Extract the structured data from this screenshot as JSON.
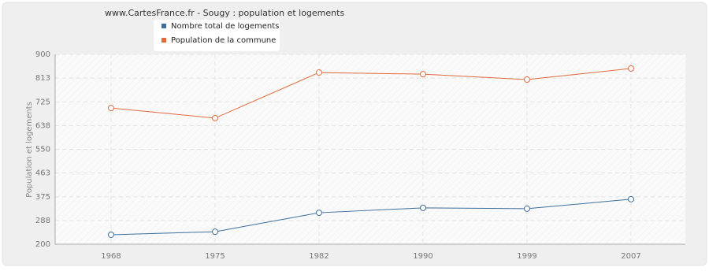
{
  "chart_data": {
    "type": "line",
    "title": "www.CartesFrance.fr - Sougy : population et logements",
    "y_label": "Population et logements",
    "categories": [
      "1968",
      "1975",
      "1982",
      "1990",
      "1999",
      "2007"
    ],
    "series": [
      {
        "name": "Nombre total de logements",
        "color": "#3e6f9e",
        "values": [
          235,
          246,
          316,
          334,
          331,
          366
        ]
      },
      {
        "name": "Population de la commune",
        "color": "#e06a3e",
        "values": [
          702,
          665,
          833,
          827,
          807,
          848
        ]
      }
    ],
    "ylim": [
      200,
      900
    ],
    "yticks": [
      200,
      {
        "value": 287.5,
        "label": "288"
      },
      375,
      {
        "value": 462.5,
        "label": "463"
      },
      550,
      {
        "value": 637.5,
        "label": "638"
      },
      725,
      {
        "value": 812.5,
        "label": "813"
      },
      900
    ],
    "grid": true
  }
}
